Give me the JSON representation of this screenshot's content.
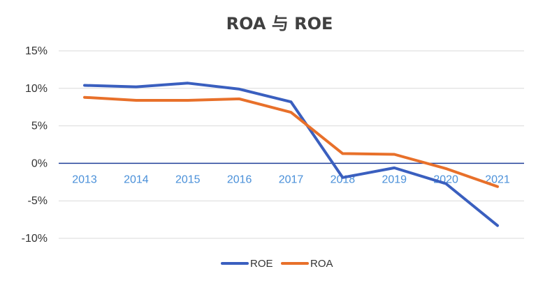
{
  "chart_data": {
    "type": "line",
    "title": "ROA 与 ROE",
    "xlabel": "",
    "ylabel": "",
    "categories": [
      "2013",
      "2014",
      "2015",
      "2016",
      "2017",
      "2018",
      "2019",
      "2020",
      "2021"
    ],
    "y_ticks": [
      15,
      10,
      5,
      0,
      -5,
      -10
    ],
    "y_tick_labels": [
      "15%",
      "10%",
      "5%",
      "0%",
      "-5%",
      "-10%"
    ],
    "ylim": [
      -10,
      15
    ],
    "grid": true,
    "legend_position": "bottom",
    "series": [
      {
        "name": "ROE",
        "color": "#3a5fbf",
        "values": [
          10.4,
          10.2,
          10.7,
          9.9,
          8.2,
          -1.9,
          -0.6,
          -2.7,
          -8.3
        ]
      },
      {
        "name": "ROA",
        "color": "#e8702a",
        "values": [
          8.8,
          8.4,
          8.4,
          8.6,
          6.8,
          1.3,
          1.2,
          -0.7,
          -3.1
        ]
      }
    ]
  }
}
